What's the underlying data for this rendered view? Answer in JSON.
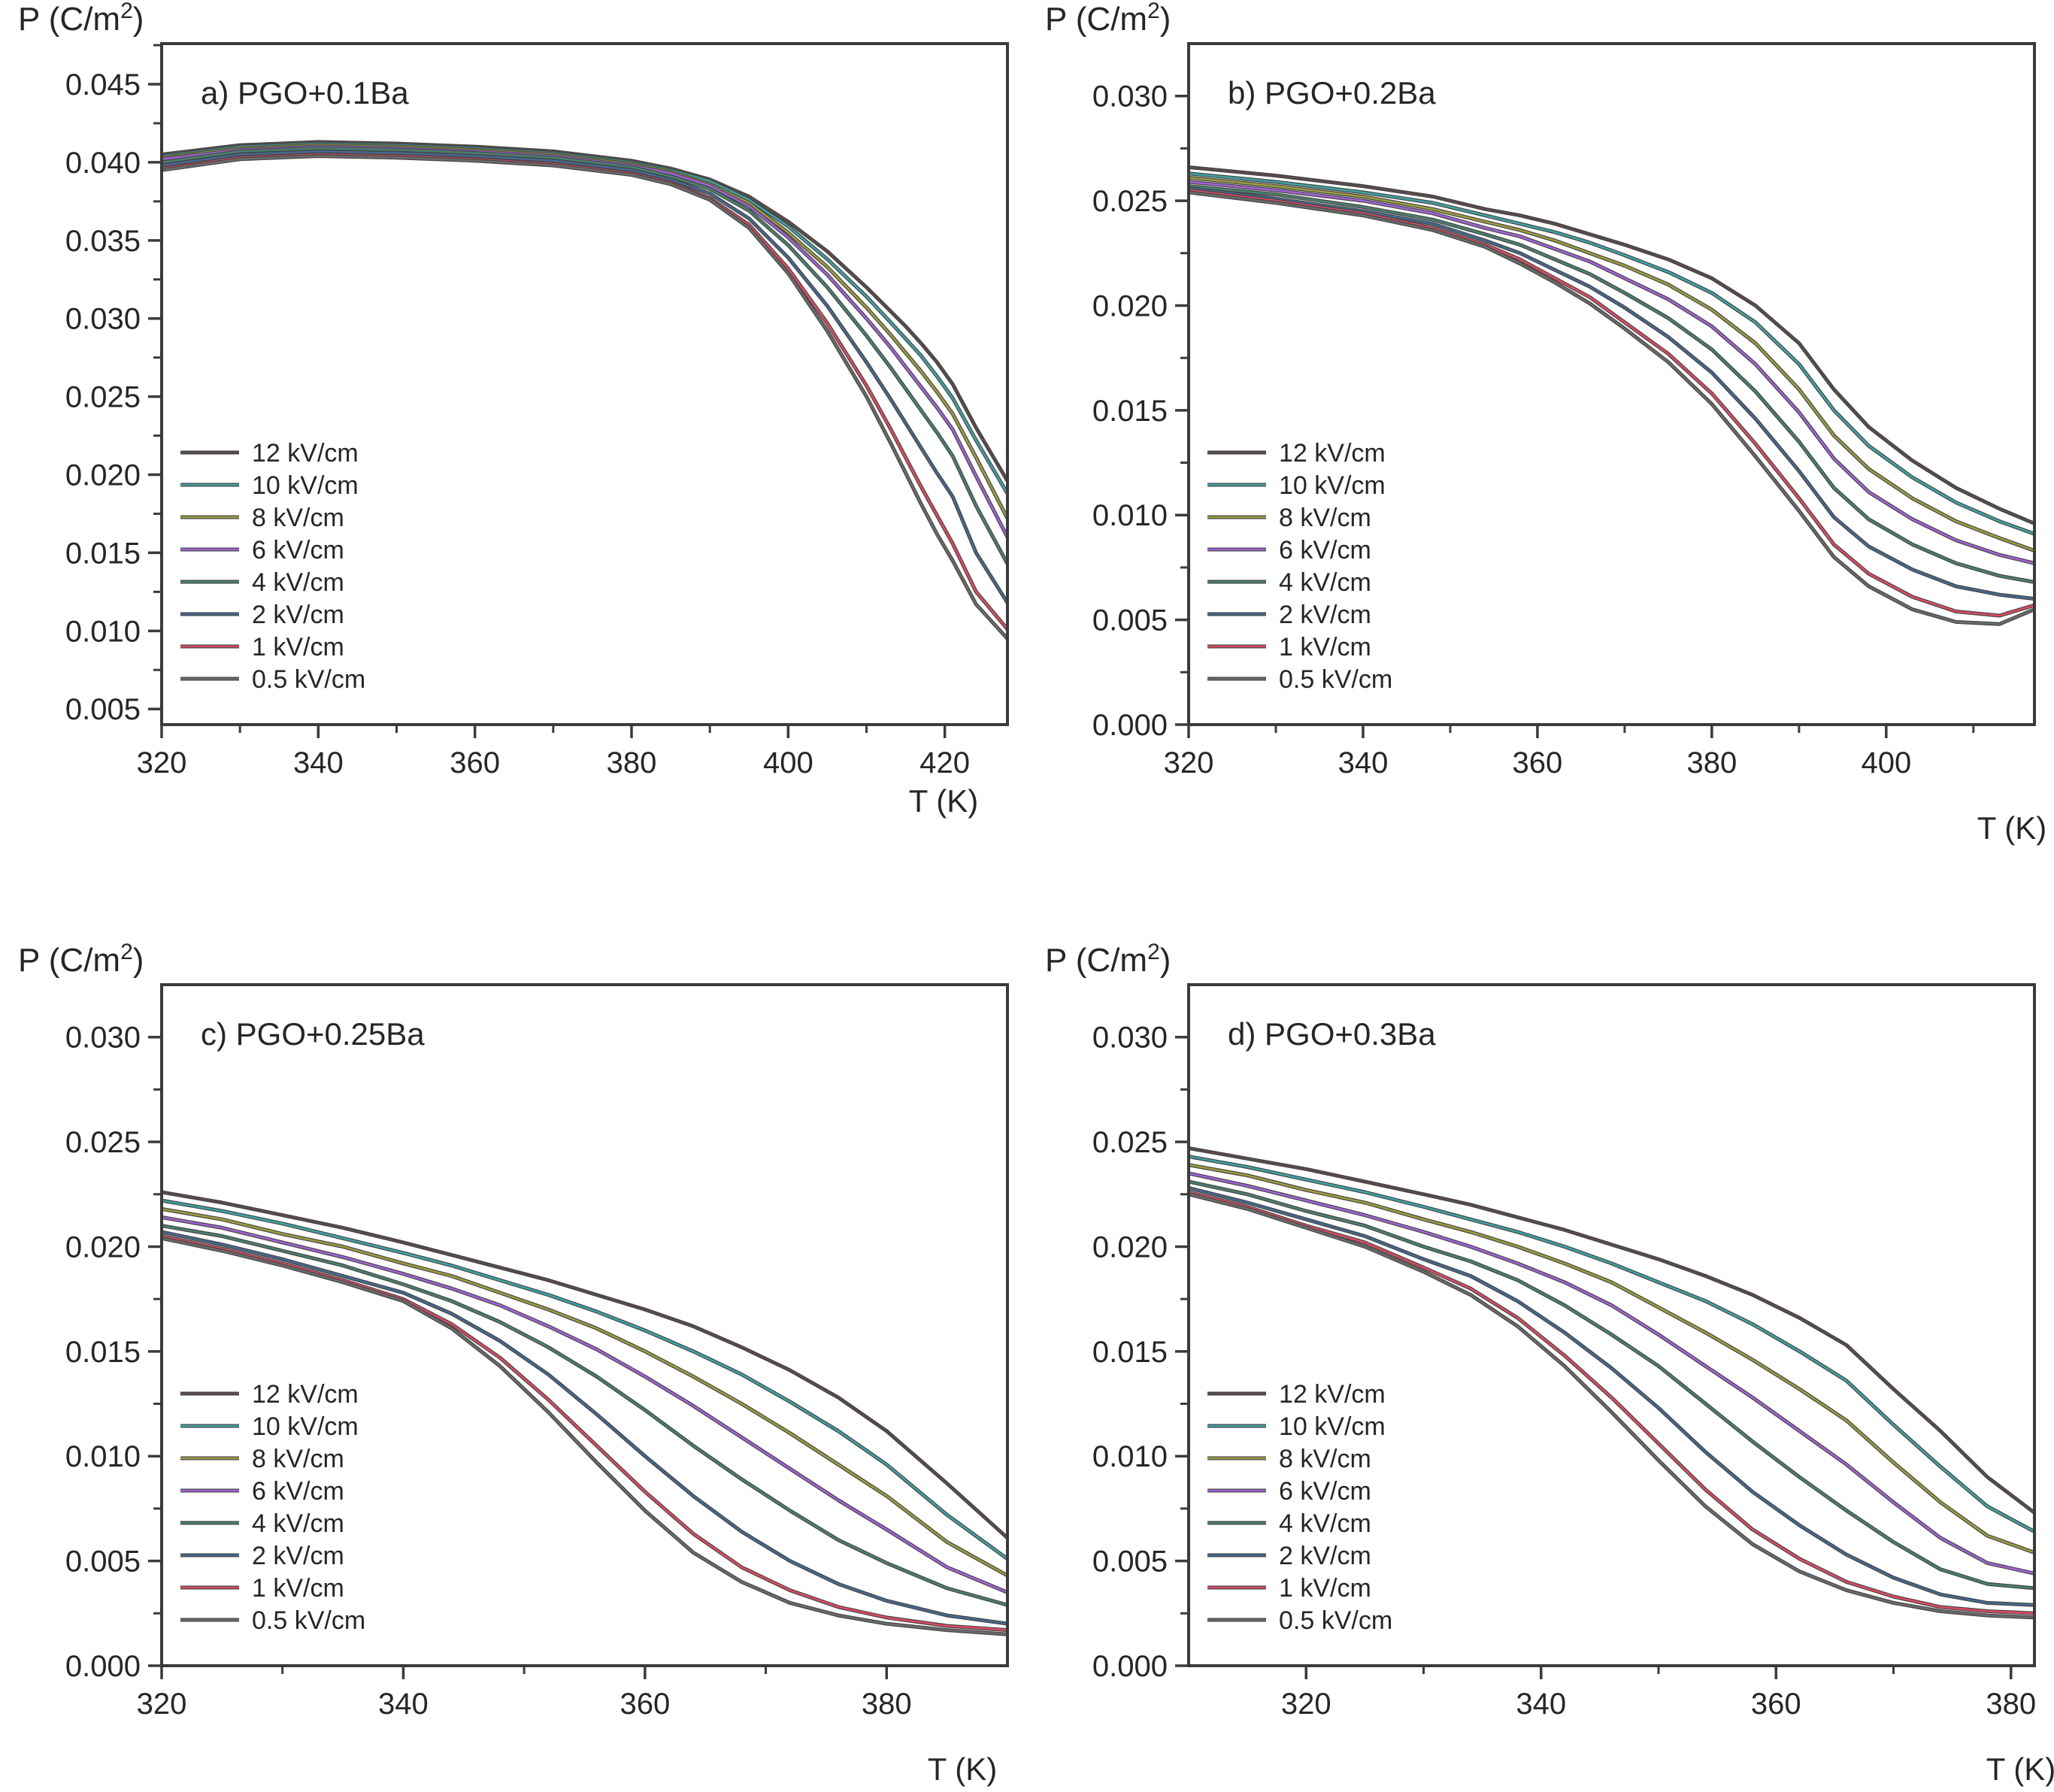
{
  "figure": {
    "background": "#ffffff",
    "frame_color": "#3b3b3b",
    "tick_color": "#3b3b3b",
    "text_color": "#262626",
    "line_outline_color": "#454545",
    "y_axis_label": {
      "prefix": "P (C/m",
      "superscript": "2",
      "suffix": ")"
    },
    "x_axis_label": "T (K)"
  },
  "legend_entries": [
    {
      "label": "12 kV/cm",
      "color": "#5a4b4b"
    },
    {
      "label": "10 kV/cm",
      "color": "#40a2a2"
    },
    {
      "label": "8 kV/cm",
      "color": "#9c9c40"
    },
    {
      "label": "6 kV/cm",
      "color": "#a263d6"
    },
    {
      "label": "4 kV/cm",
      "color": "#4a8070"
    },
    {
      "label": "2 kV/cm",
      "color": "#46688f"
    },
    {
      "label": "1 kV/cm",
      "color": "#dd4b62"
    },
    {
      "label": "0.5 kV/cm",
      "color": "#6b6b6b"
    }
  ],
  "chart_data": [
    {
      "id": "a",
      "type": "line",
      "title": "a) PGO+0.1Ba",
      "xlabel": "T (K)",
      "ylabel": "P (C/m2)",
      "xlim": [
        320,
        428
      ],
      "ylim": [
        0.004,
        0.0476
      ],
      "xticks": [
        320,
        340,
        360,
        380,
        400,
        420
      ],
      "yticks": [
        0.005,
        0.01,
        0.015,
        0.02,
        0.025,
        0.03,
        0.035,
        0.04,
        0.045
      ],
      "xminor_step": 10,
      "yminor_step": 0.0025,
      "ytick_decimals": 3,
      "grid": false,
      "legend_position": "inside-left",
      "x": [
        320,
        330,
        340,
        350,
        360,
        370,
        380,
        385,
        390,
        395,
        400,
        405,
        410,
        413,
        415,
        417,
        419,
        421,
        424,
        428
      ],
      "series": [
        {
          "name": "12 kV/cm",
          "color": "#5a4b4b",
          "y": [
            0.0405,
            0.0411,
            0.0413,
            0.0412,
            0.041,
            0.0407,
            0.0401,
            0.0396,
            0.0389,
            0.0378,
            0.0362,
            0.0343,
            0.032,
            0.0305,
            0.0295,
            0.0284,
            0.0272,
            0.0258,
            0.023,
            0.0196
          ]
        },
        {
          "name": "10 kV/cm",
          "color": "#40a2a2",
          "y": [
            0.0404,
            0.041,
            0.0412,
            0.0411,
            0.0409,
            0.0406,
            0.04,
            0.0395,
            0.0388,
            0.0376,
            0.0359,
            0.0338,
            0.0314,
            0.0298,
            0.0287,
            0.0276,
            0.0263,
            0.0249,
            0.0222,
            0.0188
          ]
        },
        {
          "name": "8 kV/cm",
          "color": "#9c9c40",
          "y": [
            0.0403,
            0.0409,
            0.0411,
            0.041,
            0.0408,
            0.0405,
            0.0399,
            0.0394,
            0.0386,
            0.0374,
            0.0355,
            0.0333,
            0.0307,
            0.029,
            0.0278,
            0.0266,
            0.0253,
            0.0239,
            0.0211,
            0.0172
          ]
        },
        {
          "name": "6 kV/cm",
          "color": "#a263d6",
          "y": [
            0.0402,
            0.0408,
            0.041,
            0.0409,
            0.0407,
            0.0404,
            0.0398,
            0.0393,
            0.0385,
            0.0372,
            0.0352,
            0.0328,
            0.03,
            0.0282,
            0.0269,
            0.0256,
            0.0243,
            0.0229,
            0.0199,
            0.016
          ]
        },
        {
          "name": "4 kV/cm",
          "color": "#4a8070",
          "y": [
            0.04,
            0.0407,
            0.0409,
            0.0408,
            0.0406,
            0.0403,
            0.0397,
            0.0391,
            0.0383,
            0.0369,
            0.0347,
            0.032,
            0.0289,
            0.0269,
            0.0255,
            0.0241,
            0.0227,
            0.0212,
            0.018,
            0.0143
          ]
        },
        {
          "name": "2 kV/cm",
          "color": "#46688f",
          "y": [
            0.0398,
            0.0405,
            0.0407,
            0.0406,
            0.0404,
            0.0401,
            0.0395,
            0.0389,
            0.038,
            0.0364,
            0.0339,
            0.0308,
            0.0272,
            0.0249,
            0.0233,
            0.0217,
            0.0201,
            0.0186,
            0.015,
            0.0118
          ]
        },
        {
          "name": "1 kV/cm",
          "color": "#dd4b62",
          "y": [
            0.0396,
            0.0403,
            0.0405,
            0.0404,
            0.0402,
            0.0399,
            0.0393,
            0.0387,
            0.0377,
            0.036,
            0.0332,
            0.0297,
            0.0257,
            0.023,
            0.0211,
            0.0192,
            0.0174,
            0.0156,
            0.0125,
            0.0101
          ]
        },
        {
          "name": "0.5 kV/cm",
          "color": "#6b6b6b",
          "y": [
            0.0395,
            0.0402,
            0.0404,
            0.0403,
            0.0401,
            0.0398,
            0.0392,
            0.0386,
            0.0376,
            0.0358,
            0.0329,
            0.0292,
            0.025,
            0.0221,
            0.0201,
            0.0181,
            0.0162,
            0.0145,
            0.0117,
            0.0095
          ]
        }
      ]
    },
    {
      "id": "b",
      "type": "line",
      "title": "b) PGO+0.2Ba",
      "xlabel": "T (K)",
      "ylabel": "P (C/m2)",
      "xlim": [
        320,
        417
      ],
      "ylim": [
        0.0,
        0.0325
      ],
      "xticks": [
        320,
        340,
        360,
        380,
        400
      ],
      "yticks": [
        0.0,
        0.005,
        0.01,
        0.015,
        0.02,
        0.025,
        0.03
      ],
      "xminor_step": 10,
      "yminor_step": 0.0025,
      "ytick_decimals": 3,
      "grid": false,
      "legend_position": "inside-left",
      "x": [
        320,
        330,
        340,
        348,
        354,
        358,
        362,
        366,
        370,
        375,
        380,
        385,
        390,
        394,
        398,
        403,
        408,
        413,
        417
      ],
      "series": [
        {
          "name": "12 kV/cm",
          "color": "#5a4b4b",
          "y": [
            0.0266,
            0.0262,
            0.0257,
            0.0252,
            0.0246,
            0.0243,
            0.0239,
            0.0234,
            0.0229,
            0.0222,
            0.0213,
            0.02,
            0.0182,
            0.016,
            0.0142,
            0.0126,
            0.0113,
            0.0103,
            0.0096
          ]
        },
        {
          "name": "10 kV/cm",
          "color": "#40a2a2",
          "y": [
            0.0263,
            0.0259,
            0.0254,
            0.0249,
            0.0243,
            0.0239,
            0.0235,
            0.023,
            0.0224,
            0.0216,
            0.0206,
            0.0192,
            0.0172,
            0.015,
            0.0133,
            0.0118,
            0.0106,
            0.0097,
            0.0091
          ]
        },
        {
          "name": "8 kV/cm",
          "color": "#9c9c40",
          "y": [
            0.0261,
            0.0257,
            0.0252,
            0.0246,
            0.024,
            0.0236,
            0.0231,
            0.0225,
            0.0219,
            0.021,
            0.0198,
            0.0182,
            0.016,
            0.0138,
            0.0122,
            0.0108,
            0.0097,
            0.0089,
            0.0083
          ]
        },
        {
          "name": "6 kV/cm",
          "color": "#a263d6",
          "y": [
            0.0259,
            0.0255,
            0.025,
            0.0244,
            0.0237,
            0.0233,
            0.0227,
            0.0221,
            0.0213,
            0.0203,
            0.019,
            0.0172,
            0.0149,
            0.0127,
            0.0111,
            0.0098,
            0.0088,
            0.0081,
            0.0077
          ]
        },
        {
          "name": "4 kV/cm",
          "color": "#4a8070",
          "y": [
            0.0257,
            0.0253,
            0.0247,
            0.0241,
            0.0234,
            0.0229,
            0.0222,
            0.0215,
            0.0206,
            0.0194,
            0.0179,
            0.0159,
            0.0135,
            0.0113,
            0.0098,
            0.0086,
            0.0077,
            0.0071,
            0.0068
          ]
        },
        {
          "name": "2 kV/cm",
          "color": "#46688f",
          "y": [
            0.0256,
            0.0251,
            0.0245,
            0.0239,
            0.0231,
            0.0225,
            0.0217,
            0.0209,
            0.0199,
            0.0185,
            0.0168,
            0.0146,
            0.0121,
            0.0099,
            0.0085,
            0.0074,
            0.0066,
            0.0062,
            0.006
          ]
        },
        {
          "name": "1 kV/cm",
          "color": "#dd4b62",
          "y": [
            0.0255,
            0.025,
            0.0244,
            0.0237,
            0.0229,
            0.0222,
            0.0213,
            0.0204,
            0.0192,
            0.0177,
            0.0158,
            0.0134,
            0.0108,
            0.0086,
            0.0072,
            0.0061,
            0.0054,
            0.0052,
            0.0057
          ]
        },
        {
          "name": "0.5 kV/cm",
          "color": "#6b6b6b",
          "y": [
            0.0254,
            0.0249,
            0.0243,
            0.0236,
            0.0228,
            0.022,
            0.0211,
            0.0201,
            0.0189,
            0.0173,
            0.0153,
            0.0128,
            0.0102,
            0.008,
            0.0066,
            0.0055,
            0.0049,
            0.0048,
            0.0055
          ]
        }
      ]
    },
    {
      "id": "c",
      "type": "line",
      "title": "c) PGO+0.25Ba",
      "xlabel": "T (K)",
      "ylabel": "P (C/m2)",
      "xlim": [
        320,
        390
      ],
      "ylim": [
        0.0,
        0.0325
      ],
      "xticks": [
        320,
        340,
        360,
        380
      ],
      "yticks": [
        0.0,
        0.005,
        0.01,
        0.015,
        0.02,
        0.025,
        0.03
      ],
      "xminor_step": 10,
      "yminor_step": 0.0025,
      "ytick_decimals": 3,
      "grid": false,
      "legend_position": "inside-left",
      "x": [
        320,
        325,
        330,
        335,
        340,
        344,
        348,
        352,
        356,
        360,
        364,
        368,
        372,
        376,
        380,
        385,
        390
      ],
      "series": [
        {
          "name": "12 kV/cm",
          "color": "#5a4b4b",
          "y": [
            0.0226,
            0.0221,
            0.0215,
            0.0209,
            0.0202,
            0.0196,
            0.019,
            0.0184,
            0.0177,
            0.017,
            0.0162,
            0.0152,
            0.0141,
            0.0128,
            0.0112,
            0.0087,
            0.0061
          ]
        },
        {
          "name": "10 kV/cm",
          "color": "#40a2a2",
          "y": [
            0.0222,
            0.0217,
            0.0211,
            0.0204,
            0.0197,
            0.0191,
            0.0184,
            0.0177,
            0.0169,
            0.016,
            0.015,
            0.0139,
            0.0126,
            0.0112,
            0.0096,
            0.0072,
            0.0051
          ]
        },
        {
          "name": "8 kV/cm",
          "color": "#9c9c40",
          "y": [
            0.0218,
            0.0213,
            0.0206,
            0.02,
            0.0192,
            0.0186,
            0.0178,
            0.017,
            0.0161,
            0.015,
            0.0138,
            0.0125,
            0.0111,
            0.0096,
            0.0081,
            0.0059,
            0.0043
          ]
        },
        {
          "name": "6 kV/cm",
          "color": "#a263d6",
          "y": [
            0.0214,
            0.0209,
            0.0202,
            0.0195,
            0.0187,
            0.018,
            0.0172,
            0.0162,
            0.0151,
            0.0138,
            0.0124,
            0.0109,
            0.0094,
            0.0079,
            0.0065,
            0.0047,
            0.0035
          ]
        },
        {
          "name": "4 kV/cm",
          "color": "#4a8070",
          "y": [
            0.021,
            0.0205,
            0.0198,
            0.0191,
            0.0182,
            0.0174,
            0.0164,
            0.0152,
            0.0138,
            0.0122,
            0.0105,
            0.0089,
            0.0074,
            0.006,
            0.0049,
            0.0037,
            0.0029
          ]
        },
        {
          "name": "2 kV/cm",
          "color": "#46688f",
          "y": [
            0.0207,
            0.0201,
            0.0194,
            0.0186,
            0.0178,
            0.0168,
            0.0155,
            0.0139,
            0.012,
            0.01,
            0.0081,
            0.0064,
            0.005,
            0.0039,
            0.0031,
            0.0024,
            0.002
          ]
        },
        {
          "name": "1 kV/cm",
          "color": "#dd4b62",
          "y": [
            0.0205,
            0.0199,
            0.0192,
            0.0184,
            0.0175,
            0.0163,
            0.0147,
            0.0127,
            0.0105,
            0.0083,
            0.0063,
            0.0047,
            0.0036,
            0.0028,
            0.0023,
            0.0019,
            0.0017
          ]
        },
        {
          "name": "0.5 kV/cm",
          "color": "#6b6b6b",
          "y": [
            0.0204,
            0.0198,
            0.0191,
            0.0183,
            0.0174,
            0.0161,
            0.0143,
            0.0121,
            0.0097,
            0.0074,
            0.0054,
            0.004,
            0.003,
            0.0024,
            0.002,
            0.0017,
            0.0015
          ]
        }
      ]
    },
    {
      "id": "d",
      "type": "line",
      "title": "d) PGO+0.3Ba",
      "xlabel": "T (K)",
      "ylabel": "P (C/m2)",
      "xlim": [
        310,
        382
      ],
      "ylim": [
        0.0,
        0.0325
      ],
      "xticks": [
        320,
        340,
        360,
        380
      ],
      "yticks": [
        0.0,
        0.005,
        0.01,
        0.015,
        0.02,
        0.025,
        0.03
      ],
      "xminor_step": 10,
      "yminor_step": 0.0025,
      "ytick_decimals": 3,
      "grid": false,
      "legend_position": "inside-left",
      "x": [
        310,
        315,
        320,
        325,
        330,
        334,
        338,
        342,
        346,
        350,
        354,
        358,
        362,
        366,
        370,
        374,
        378,
        382
      ],
      "series": [
        {
          "name": "12 kV/cm",
          "color": "#5a4b4b",
          "y": [
            0.0247,
            0.0242,
            0.0237,
            0.0231,
            0.0225,
            0.022,
            0.0214,
            0.0208,
            0.0201,
            0.0194,
            0.0186,
            0.0177,
            0.0166,
            0.0153,
            0.0132,
            0.0112,
            0.009,
            0.0073
          ]
        },
        {
          "name": "10 kV/cm",
          "color": "#40a2a2",
          "y": [
            0.0243,
            0.0238,
            0.0232,
            0.0226,
            0.0219,
            0.0213,
            0.0207,
            0.02,
            0.0192,
            0.0183,
            0.0174,
            0.0163,
            0.015,
            0.0136,
            0.0115,
            0.0095,
            0.0076,
            0.0064
          ]
        },
        {
          "name": "8 kV/cm",
          "color": "#9c9c40",
          "y": [
            0.0239,
            0.0234,
            0.0227,
            0.0221,
            0.0213,
            0.0207,
            0.02,
            0.0192,
            0.0183,
            0.0171,
            0.0159,
            0.0146,
            0.0132,
            0.0117,
            0.0097,
            0.0078,
            0.0062,
            0.0054
          ]
        },
        {
          "name": "6 kV/cm",
          "color": "#a263d6",
          "y": [
            0.0235,
            0.0229,
            0.0222,
            0.0215,
            0.0207,
            0.02,
            0.0192,
            0.0183,
            0.0172,
            0.0158,
            0.0143,
            0.0128,
            0.0112,
            0.0096,
            0.0078,
            0.0061,
            0.0049,
            0.0044
          ]
        },
        {
          "name": "4 kV/cm",
          "color": "#4a8070",
          "y": [
            0.0231,
            0.0225,
            0.0217,
            0.021,
            0.02,
            0.0193,
            0.0184,
            0.0172,
            0.0158,
            0.0143,
            0.0125,
            0.0107,
            0.009,
            0.0074,
            0.0059,
            0.0046,
            0.0039,
            0.0037
          ]
        },
        {
          "name": "2 kV/cm",
          "color": "#46688f",
          "y": [
            0.0228,
            0.0221,
            0.0213,
            0.0205,
            0.0194,
            0.0186,
            0.0174,
            0.0159,
            0.0142,
            0.0123,
            0.0102,
            0.0083,
            0.0067,
            0.0053,
            0.0042,
            0.0034,
            0.003,
            0.0029
          ]
        },
        {
          "name": "1 kV/cm",
          "color": "#dd4b62",
          "y": [
            0.0226,
            0.0219,
            0.021,
            0.0202,
            0.019,
            0.018,
            0.0166,
            0.0148,
            0.0128,
            0.0106,
            0.0084,
            0.0065,
            0.0051,
            0.004,
            0.0033,
            0.0028,
            0.0026,
            0.0025
          ]
        },
        {
          "name": "0.5 kV/cm",
          "color": "#6b6b6b",
          "y": [
            0.0225,
            0.0218,
            0.0209,
            0.02,
            0.0188,
            0.0177,
            0.0162,
            0.0143,
            0.0121,
            0.0098,
            0.0076,
            0.0058,
            0.0045,
            0.0036,
            0.003,
            0.0026,
            0.0024,
            0.0023
          ]
        }
      ]
    }
  ]
}
